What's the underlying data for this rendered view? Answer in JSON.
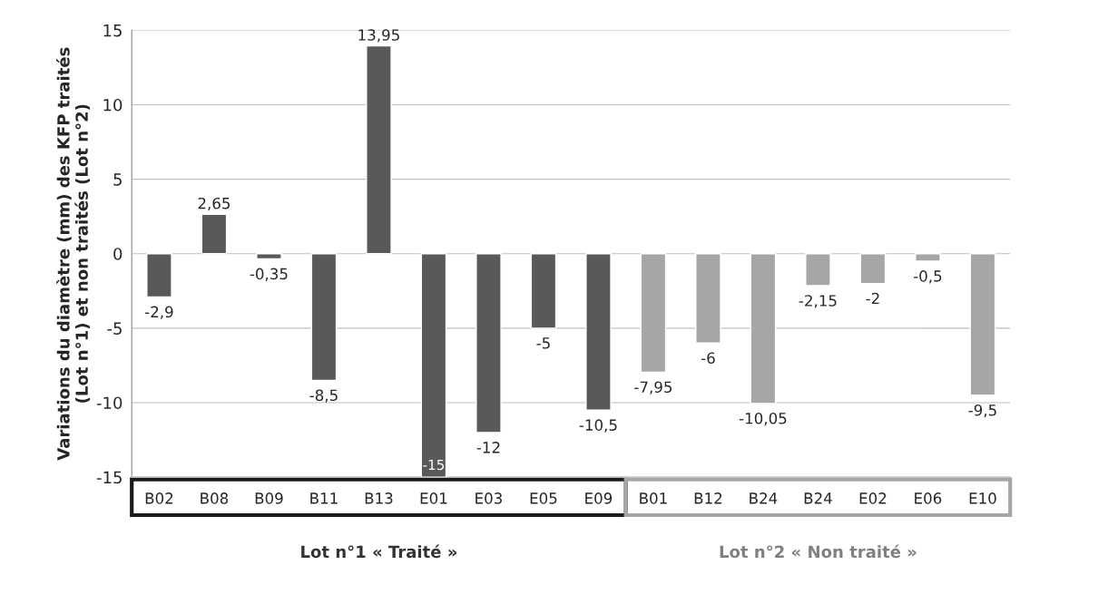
{
  "chart_data": {
    "type": "bar",
    "ylabel": "Variations du diamètre (mm) des KFP traités\n(Lot n°1) et non traités (Lot n°2)",
    "categories": [
      "B02",
      "B08",
      "B09",
      "B11",
      "B13",
      "E01",
      "E03",
      "E05",
      "E09",
      "B01",
      "B12",
      "B24",
      "B24",
      "E02",
      "E06",
      "E10"
    ],
    "values": [
      -2.9,
      2.65,
      -0.35,
      -8.5,
      13.95,
      -15,
      -12,
      -5,
      -10.5,
      -7.95,
      -6,
      -10.05,
      -2.15,
      -2,
      -0.5,
      -9.5
    ],
    "value_labels": [
      "-2,9",
      "2,65",
      "-0,35",
      "-8,5",
      "13,95",
      "-15",
      "-12",
      "-5",
      "-10,5",
      "-7,95",
      "-6",
      "-10,05",
      "-2,15",
      "-2",
      "-0,5",
      "-9,5"
    ],
    "colors": [
      "#595959",
      "#595959",
      "#595959",
      "#595959",
      "#595959",
      "#595959",
      "#595959",
      "#595959",
      "#595959",
      "#a6a6a6",
      "#a6a6a6",
      "#a6a6a6",
      "#a6a6a6",
      "#a6a6a6",
      "#a6a6a6",
      "#a6a6a6"
    ],
    "ylim": [
      -15,
      15
    ],
    "yticks": [
      -15,
      -10,
      -5,
      0,
      5,
      10,
      15
    ],
    "grid": "y",
    "legend": false,
    "annotations": [
      "Lot n°1 « Traité »",
      "Lot n°2 « Non traité »"
    ]
  }
}
